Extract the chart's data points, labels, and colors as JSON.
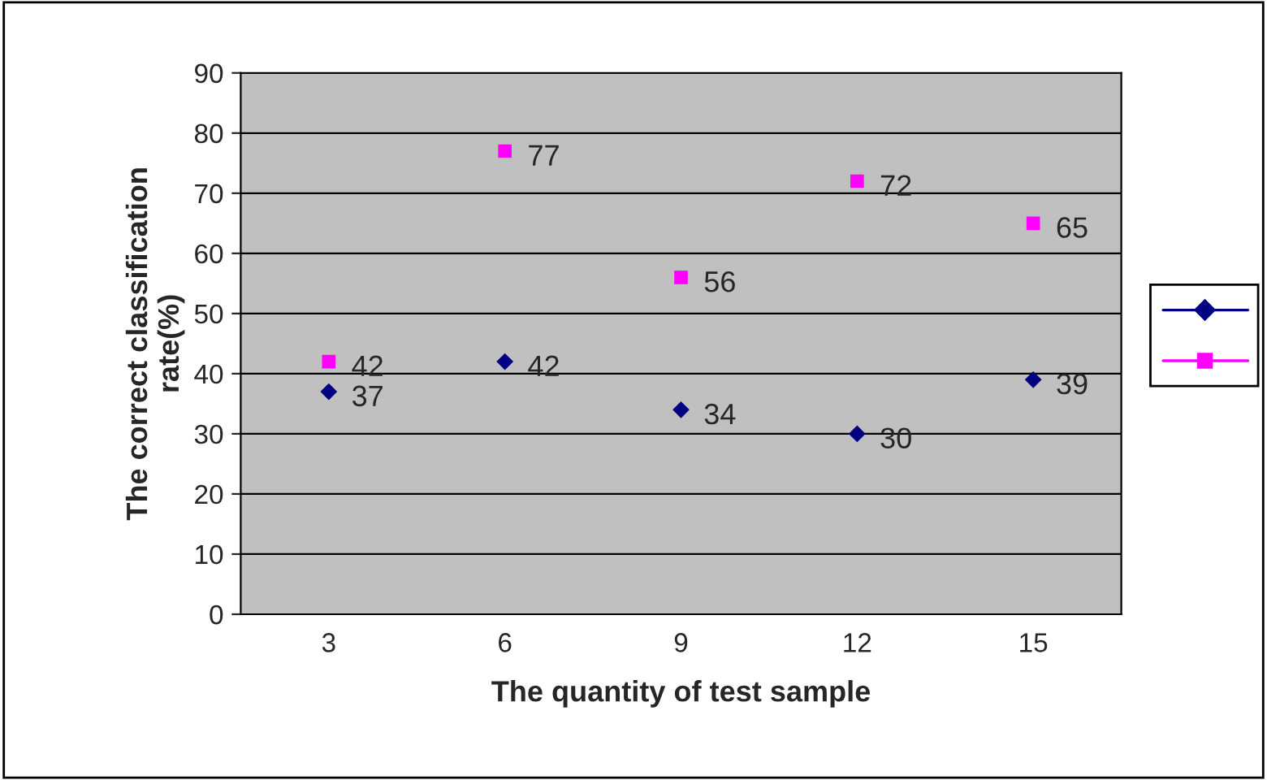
{
  "chart_data": {
    "type": "scatter",
    "xlabel": "The quantity of test sample",
    "ylabel": "The correct classification\nrate(%)",
    "categories": [
      "3",
      "6",
      "9",
      "12",
      "15"
    ],
    "series": [
      {
        "color": "#000080",
        "marker": "diamond",
        "values": [
          37,
          42,
          34,
          30,
          39
        ]
      },
      {
        "color": "#ff00ff",
        "marker": "square",
        "values": [
          42,
          77,
          56,
          72,
          65
        ]
      }
    ],
    "ylim": [
      0,
      90
    ],
    "yticks": [
      0,
      10,
      20,
      30,
      40,
      50,
      60,
      70,
      80,
      90
    ],
    "grid": "y",
    "data_labels": true
  }
}
